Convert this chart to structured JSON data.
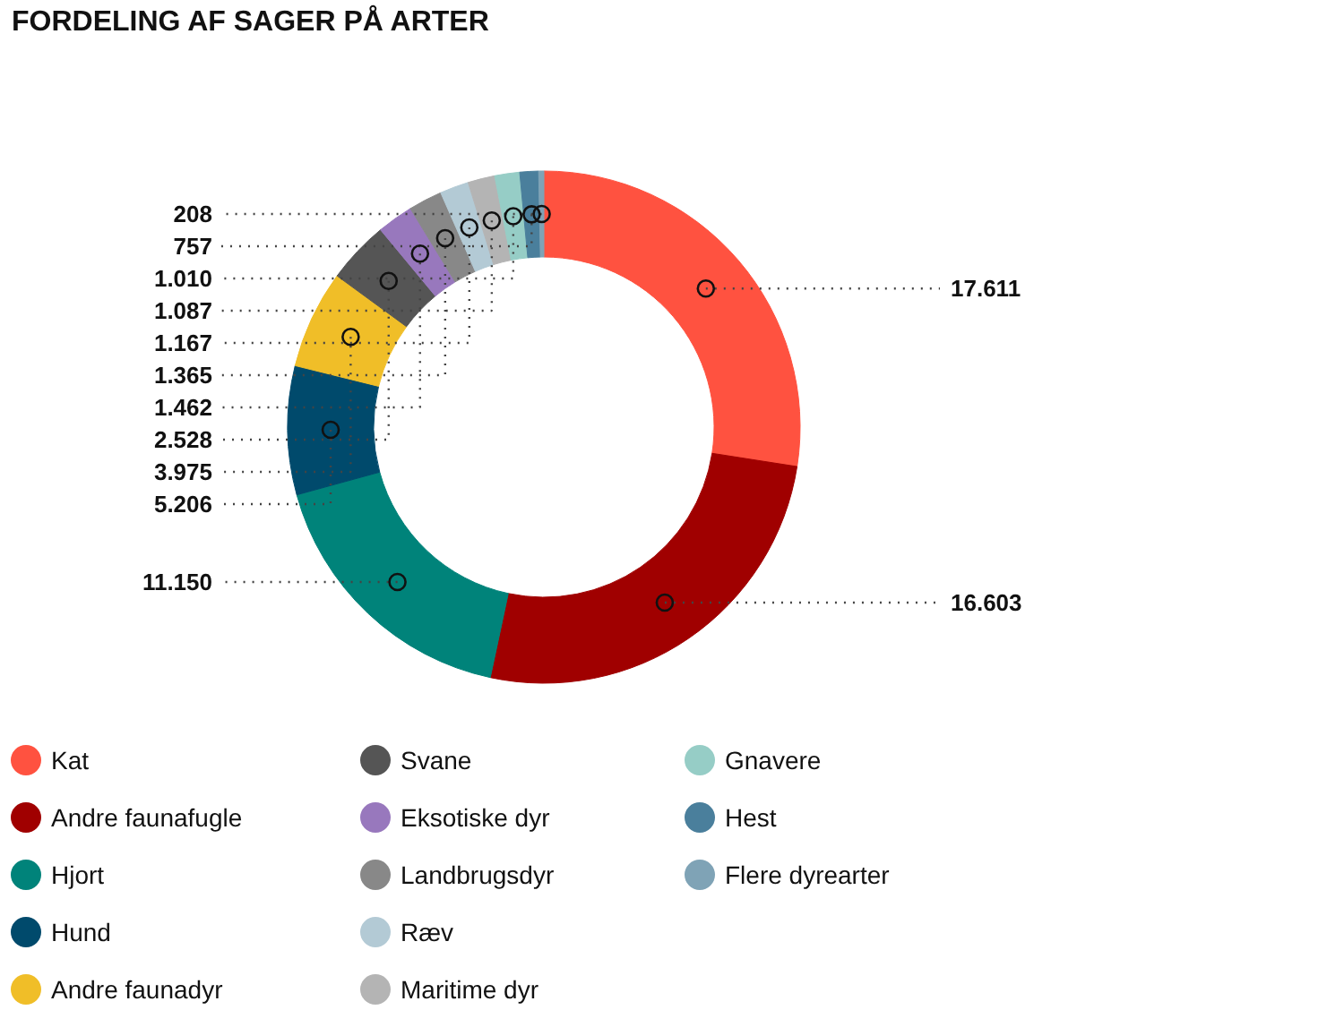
{
  "chart_data": {
    "type": "donut",
    "title": "FORDELING AF SAGER PÅ ARTER",
    "categories": [
      "Kat",
      "Andre faunafugle",
      "Hjort",
      "Hund",
      "Andre faunadyr",
      "Svane",
      "Eksotiske dyr",
      "Landbrugsdyr",
      "Ræv",
      "Maritime dyr",
      "Gnavere",
      "Hest",
      "Flere dyrearter"
    ],
    "values": [
      17611,
      16603,
      11150,
      5206,
      3975,
      2528,
      1462,
      1365,
      1167,
      1087,
      1010,
      757,
      208
    ],
    "value_labels": [
      "17.611",
      "16.603",
      "11.150",
      "5.206",
      "3.975",
      "2.528",
      "1.462",
      "1.365",
      "1.167",
      "1.087",
      "1.010",
      "757",
      "208"
    ],
    "colors": [
      "#ff5240",
      "#a00000",
      "#00837a",
      "#004a6c",
      "#f0be28",
      "#555555",
      "#9878bd",
      "#888888",
      "#b3cad5",
      "#b4b4b4",
      "#96cdc6",
      "#4a7f9c",
      "#7fa3b6"
    ],
    "legend": "bottom"
  }
}
